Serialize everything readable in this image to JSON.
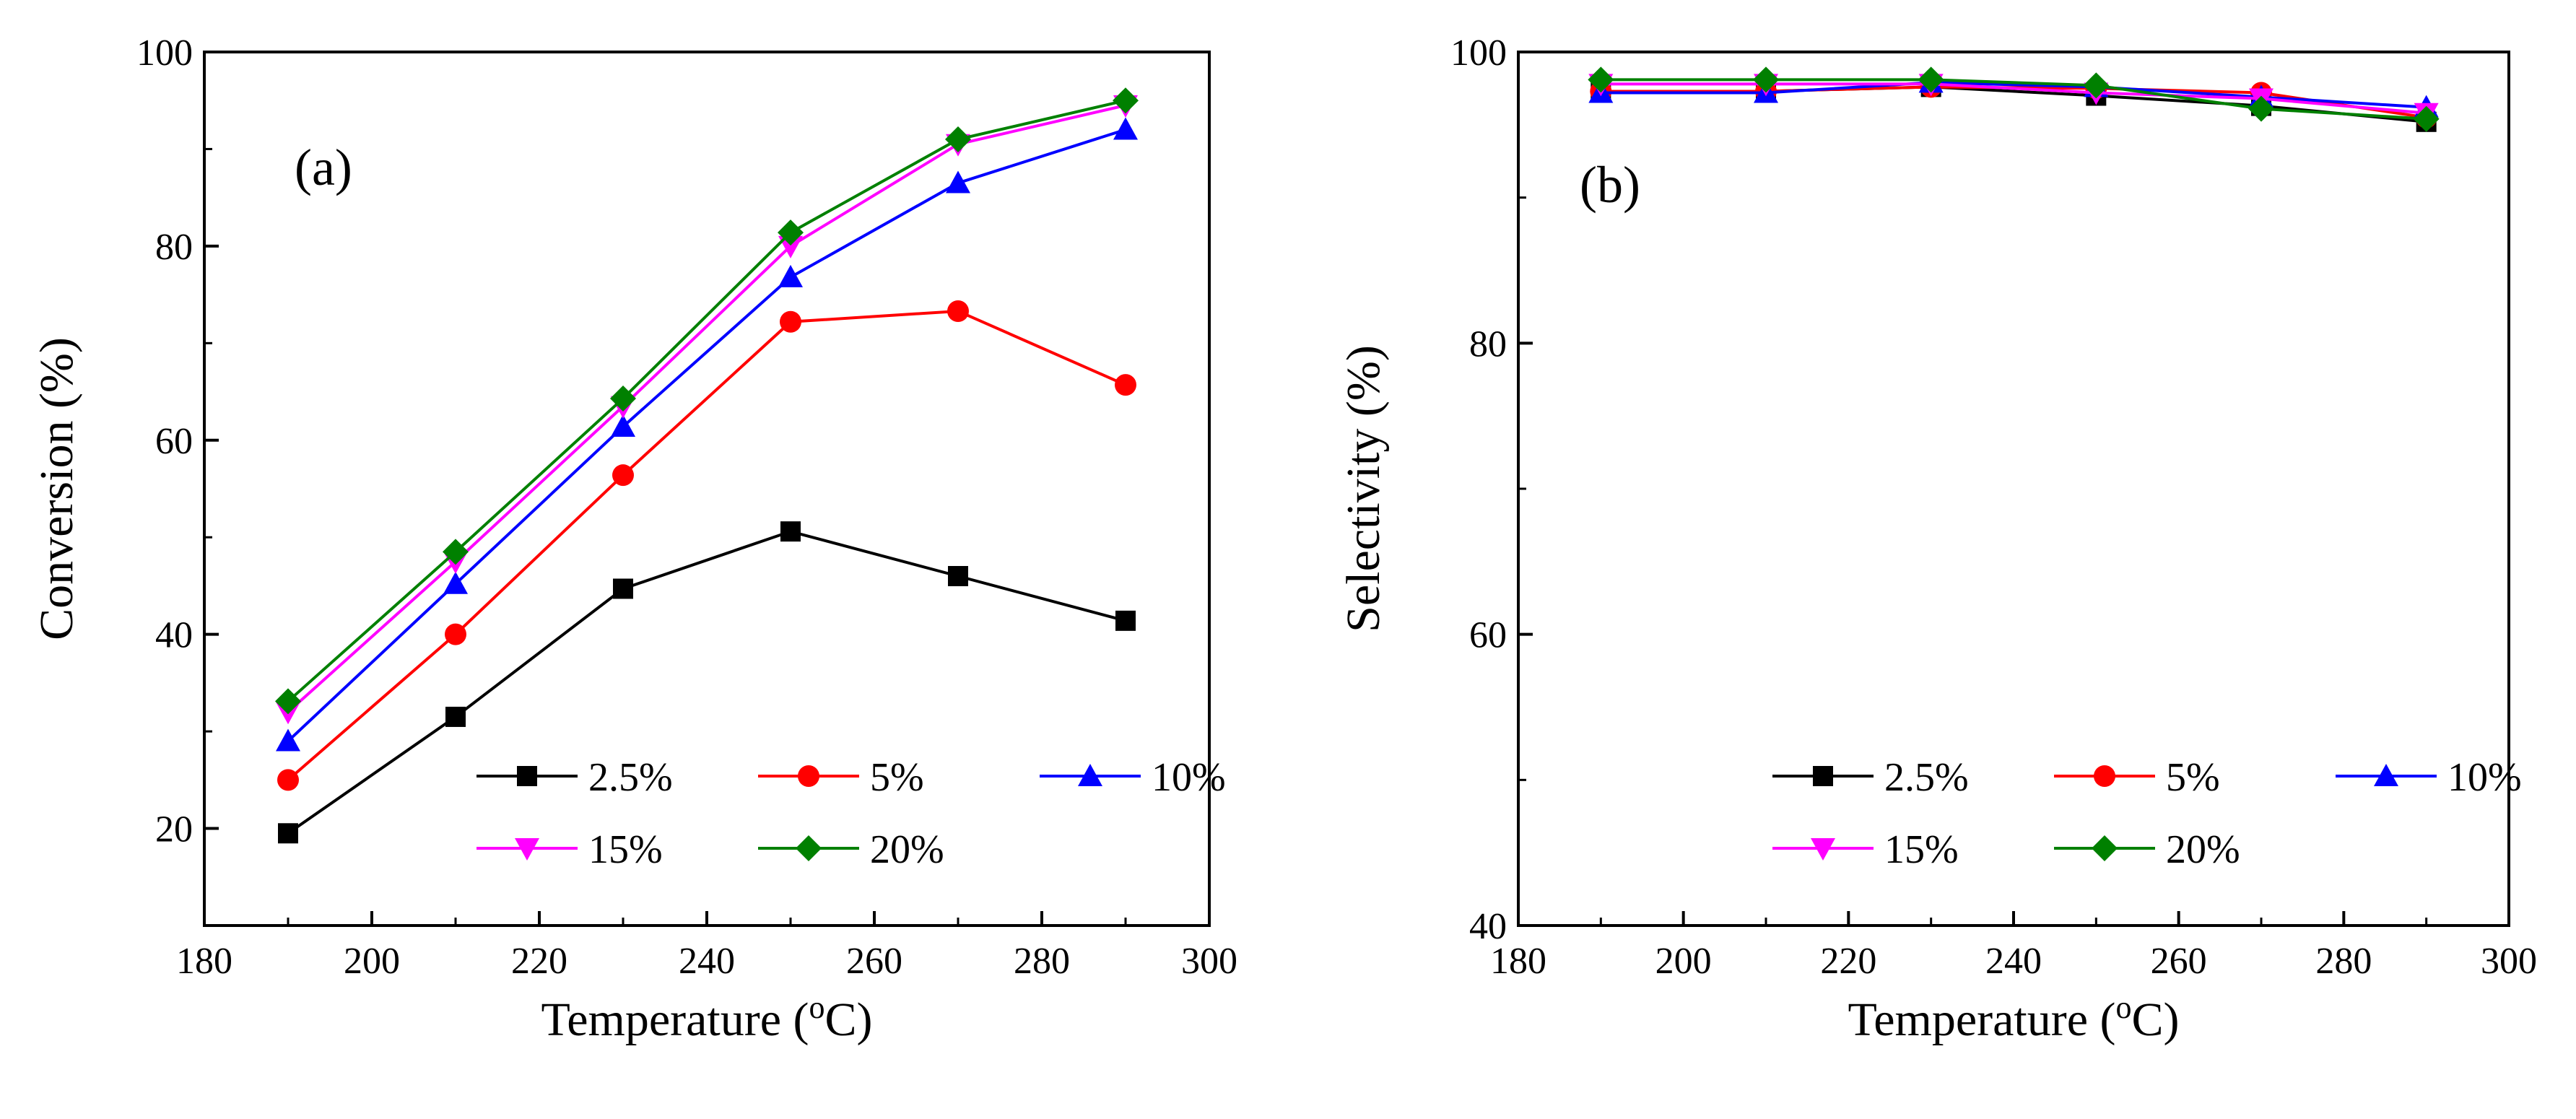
{
  "chart_data": [
    {
      "type": "line",
      "panel_label": "(a)",
      "xlabel": "Temperature",
      "xlabel_unit": "(oC)",
      "ylabel": "Conversion (%)",
      "xlim": [
        180,
        300
      ],
      "ylim": [
        10,
        100
      ],
      "xticks": [
        180,
        200,
        220,
        240,
        260,
        280,
        300
      ],
      "yticks": [
        20,
        40,
        60,
        80,
        100
      ],
      "grid": false,
      "legend_position": "bottom-right",
      "x": [
        190,
        210,
        230,
        250,
        270,
        290
      ],
      "series": [
        {
          "name": "2.5%",
          "color": "#000000",
          "marker": "square",
          "values": [
            19.5,
            31.5,
            44.7,
            50.6,
            46.0,
            41.4
          ]
        },
        {
          "name": "5%",
          "color": "#ff0000",
          "marker": "circle",
          "values": [
            25.0,
            40.0,
            56.4,
            72.2,
            73.3,
            65.7
          ]
        },
        {
          "name": "10%",
          "color": "#0000ff",
          "marker": "triangle-up",
          "values": [
            29.0,
            45.2,
            61.4,
            76.8,
            86.5,
            92.0
          ]
        },
        {
          "name": "15%",
          "color": "#ff00ff",
          "marker": "triangle-down",
          "values": [
            32.0,
            47.5,
            63.5,
            80.0,
            90.5,
            94.5
          ]
        },
        {
          "name": "20%",
          "color": "#008000",
          "marker": "diamond",
          "values": [
            33.1,
            48.5,
            64.3,
            81.4,
            91.0,
            95.0
          ]
        }
      ]
    },
    {
      "type": "line",
      "panel_label": "(b)",
      "xlabel": "Temperature",
      "xlabel_unit": "(oC)",
      "ylabel": "Selectivity (%)",
      "xlim": [
        180,
        300
      ],
      "ylim": [
        40,
        100
      ],
      "xticks": [
        180,
        200,
        220,
        240,
        260,
        280,
        300
      ],
      "yticks": [
        40,
        60,
        80,
        100
      ],
      "grid": false,
      "legend_position": "bottom-right",
      "x": [
        190,
        210,
        230,
        250,
        270,
        290
      ],
      "series": [
        {
          "name": "2.5%",
          "color": "#000000",
          "marker": "square",
          "values": [
            97.3,
            97.3,
            97.6,
            97.0,
            96.3,
            95.2
          ]
        },
        {
          "name": "5%",
          "color": "#ff0000",
          "marker": "circle",
          "values": [
            97.3,
            97.3,
            97.6,
            97.5,
            97.2,
            95.5
          ]
        },
        {
          "name": "10%",
          "color": "#0000ff",
          "marker": "triangle-up",
          "values": [
            97.2,
            97.2,
            97.9,
            97.6,
            96.9,
            96.2
          ]
        },
        {
          "name": "15%",
          "color": "#ff00ff",
          "marker": "triangle-down",
          "values": [
            97.8,
            97.8,
            97.8,
            97.2,
            96.8,
            95.8
          ]
        },
        {
          "name": "20%",
          "color": "#008000",
          "marker": "diamond",
          "values": [
            98.1,
            98.1,
            98.1,
            97.7,
            96.1,
            95.4
          ]
        }
      ]
    }
  ]
}
